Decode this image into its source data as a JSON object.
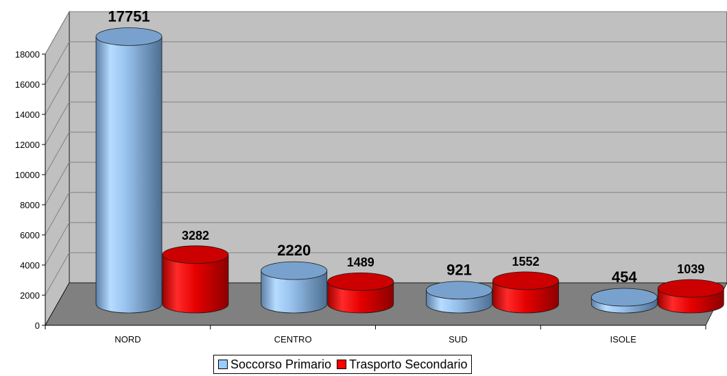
{
  "chart_data": {
    "type": "bar",
    "categories": [
      "NORD",
      "CENTRO",
      "SUD",
      "ISOLE"
    ],
    "series": [
      {
        "name": "Soccorso Primario",
        "values": [
          17751,
          2220,
          921,
          454
        ],
        "color": "#99ccff"
      },
      {
        "name": "Trasporto Secondario",
        "values": [
          3282,
          1489,
          1552,
          1039
        ],
        "color": "#ff0000"
      }
    ],
    "data_labels": [
      [
        "17751",
        "2220",
        "921",
        "454"
      ],
      [
        "3282",
        "1489",
        "1552",
        "1039"
      ]
    ],
    "y_ticks": [
      "0",
      "2000",
      "4000",
      "6000",
      "8000",
      "10000",
      "12000",
      "14000",
      "16000",
      "18000"
    ],
    "ylim": [
      0,
      18000
    ],
    "title": "",
    "xlabel": "",
    "ylabel": "",
    "grid": true,
    "legend_position": "bottom",
    "style": "3d-cylinder",
    "wall_color": "#c0c0c0",
    "floor_color": "#808080"
  },
  "legend": {
    "items": [
      {
        "label": "Soccorso Primario",
        "color": "#99ccff"
      },
      {
        "label": "Trasporto Secondario",
        "color": "#ff0000"
      }
    ]
  }
}
